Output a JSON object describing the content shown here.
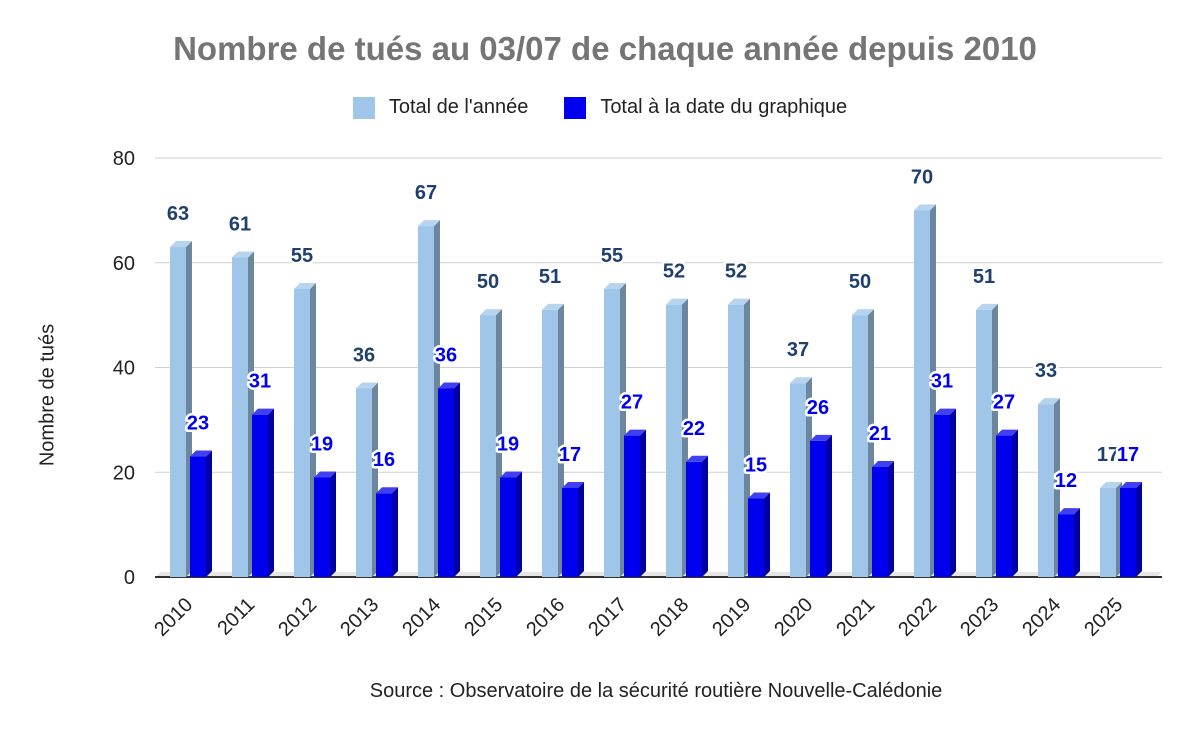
{
  "chart_data": {
    "type": "bar",
    "title": "Nombre de tués au 03/07 de chaque année depuis 2010",
    "ylabel": "Nombre de tués",
    "xlabel": "",
    "ylim": [
      0,
      80
    ],
    "yticks": [
      0,
      20,
      40,
      60,
      80
    ],
    "grid": true,
    "legend_position": "top",
    "categories": [
      "2010",
      "2011",
      "2012",
      "2013",
      "2014",
      "2015",
      "2016",
      "2017",
      "2018",
      "2019",
      "2020",
      "2021",
      "2022",
      "2023",
      "2024",
      "2025"
    ],
    "series": [
      {
        "name": "Total de l'année",
        "color": "#9fc5e8",
        "label_color": "#1f3f6e",
        "values": [
          63,
          61,
          55,
          36,
          67,
          50,
          51,
          55,
          52,
          52,
          37,
          50,
          70,
          51,
          33,
          17
        ]
      },
      {
        "name": "Total à la date du graphique",
        "color": "#0000ee",
        "label_color": "#0000ee",
        "values": [
          23,
          31,
          19,
          16,
          36,
          19,
          17,
          27,
          22,
          15,
          26,
          21,
          31,
          27,
          12,
          17
        ]
      }
    ]
  },
  "source": "Source : Observatoire de la sécurité routière Nouvelle-Calédonie"
}
